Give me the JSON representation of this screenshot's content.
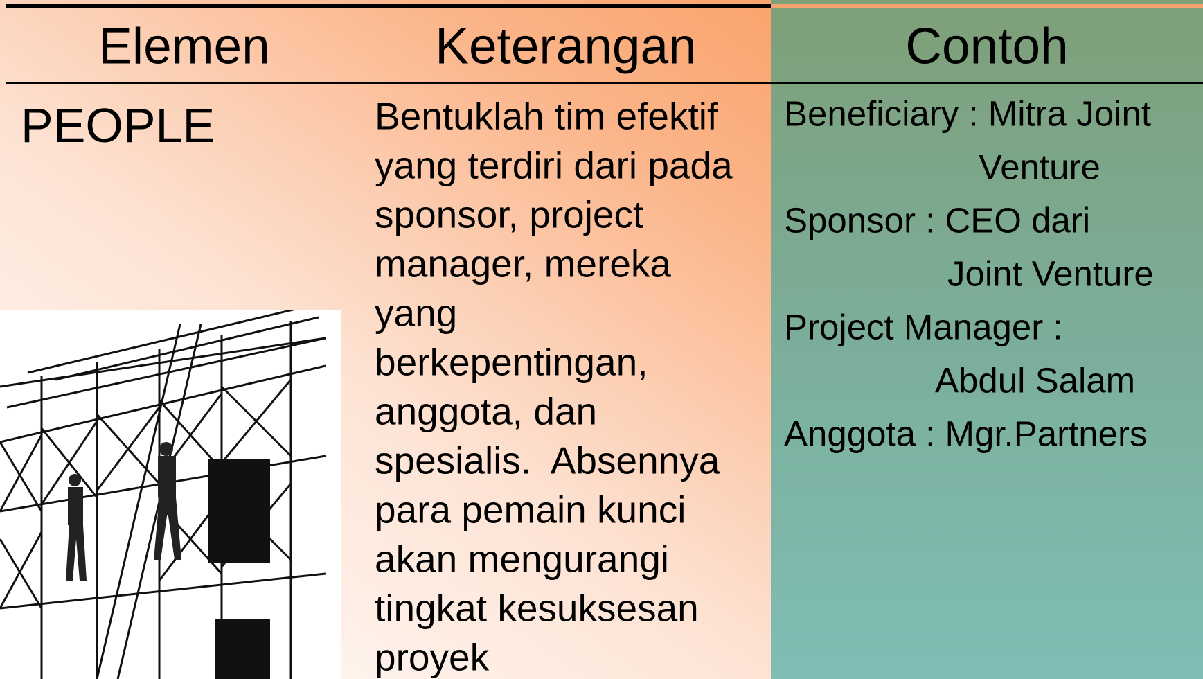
{
  "table": {
    "headers": [
      "Elemen",
      "Keterangan",
      "Contoh"
    ],
    "rows": [
      {
        "element": "PEOPLE",
        "description": [
          "Bentuklah tim efektif",
          "yang terdiri dari pada",
          "sponsor, project",
          "manager, mereka",
          "yang",
          "berkepentingan,",
          "anggota, dan",
          "spesialis.  Absennya",
          "para pemain kunci",
          "akan mengurangi",
          "tingkat kesuksesan",
          "proyek"
        ],
        "examples": [
          "Beneficiary : Mitra Joint",
          "Venture",
          "Sponsor : CEO dari",
          "Joint Venture",
          "Project Manager :",
          "Abdul Salam",
          "Anggota : Mgr.Partners"
        ]
      }
    ]
  }
}
